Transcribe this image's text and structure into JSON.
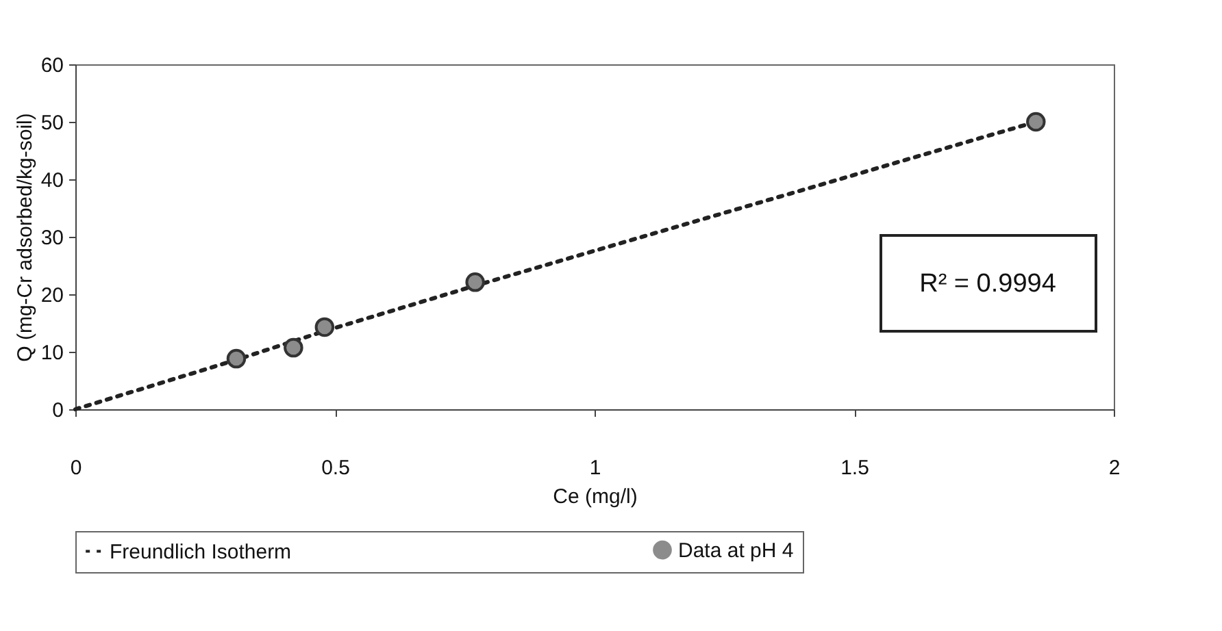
{
  "chart_data": {
    "type": "scatter",
    "xlabel": "Ce (mg/l)",
    "ylabel": "Q (mg-Cr adsorbed/kg-soil)",
    "xlim": [
      0,
      2
    ],
    "xticks": [
      {
        "value": 0,
        "label": "0"
      },
      0.5,
      {
        "value": 1,
        "label": "1"
      },
      1.5,
      {
        "value": 2,
        "label": "2"
      }
    ],
    "ylim": [
      0,
      60
    ],
    "yticks": [
      0,
      10,
      20,
      30,
      40,
      50,
      60
    ],
    "grid": false,
    "legend": "bottom",
    "series": [
      {
        "name": "Freundlich Isotherm",
        "type": "line",
        "line_style": "dotted",
        "marker": "none",
        "color": "#222222",
        "x": [
          0,
          0.31,
          0.48,
          0.77,
          1.85
        ],
        "values": [
          0,
          8.6,
          13.6,
          21.5,
          50
        ]
      },
      {
        "name": "Data at pH 4",
        "type": "scatter",
        "marker": "circle",
        "color": "#8c8c8c",
        "x": [
          0.31,
          0.42,
          0.48,
          0.77,
          1.85
        ],
        "values": [
          8.8,
          10.7,
          14.3,
          22.1,
          50
        ]
      }
    ],
    "annotations": [
      "R² = 0.9994"
    ]
  }
}
